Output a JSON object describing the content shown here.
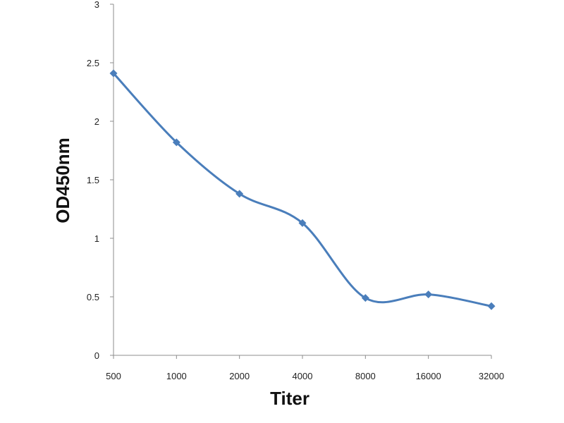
{
  "chart_data": {
    "type": "line",
    "title": "",
    "xlabel": "Titer",
    "ylabel": "OD450nm",
    "categories": [
      "500",
      "1000",
      "2000",
      "4000",
      "8000",
      "16000",
      "32000"
    ],
    "series": [
      {
        "values": [
          2.41,
          1.82,
          1.38,
          1.13,
          0.49,
          0.52,
          0.42
        ],
        "color": "#4a7ebb",
        "marker": "diamond",
        "smooth": true
      }
    ],
    "ylim": [
      0,
      3
    ],
    "yticks": [
      "0",
      "0.5",
      "1",
      "1.5",
      "2",
      "2.5",
      "3"
    ],
    "grid": false,
    "legend": "none"
  }
}
